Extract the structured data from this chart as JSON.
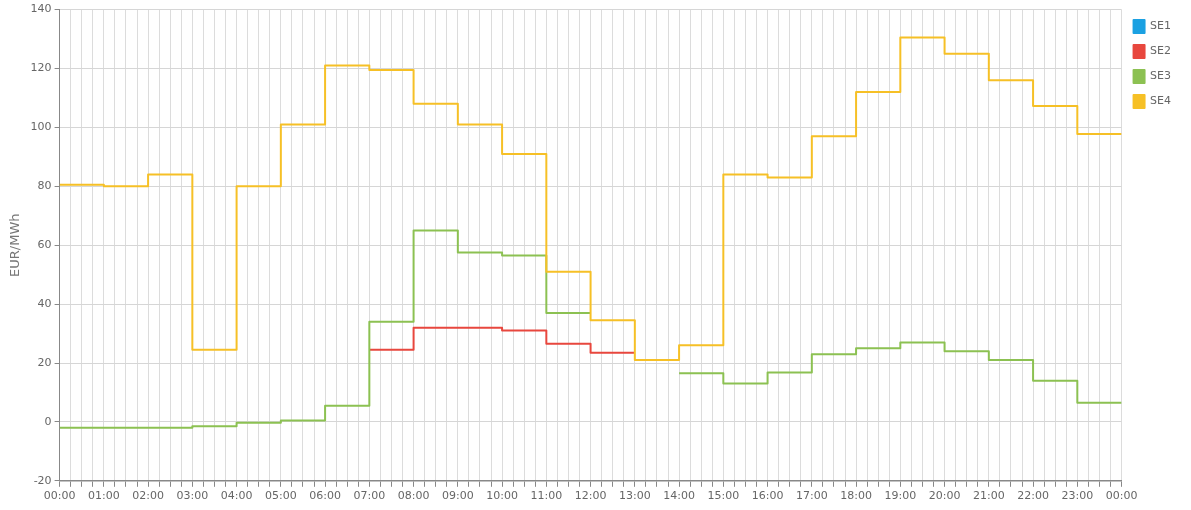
{
  "chart_data": {
    "type": "step",
    "ylabel": "EUR/MWh",
    "x": [
      0,
      1,
      2,
      3,
      4,
      5,
      6,
      7,
      8,
      9,
      10,
      11,
      12,
      13,
      14,
      15,
      16,
      17,
      18,
      19,
      20,
      21,
      22,
      23,
      24
    ],
    "xlim": [
      0,
      24
    ],
    "xticks": [
      {
        "value": 0,
        "label": "00:00"
      },
      {
        "value": 0.25,
        "label": null
      },
      {
        "value": 0.5,
        "label": null
      },
      {
        "value": 0.75,
        "label": null
      },
      {
        "value": 1,
        "label": "01:00"
      },
      {
        "value": 1.25,
        "label": null
      },
      {
        "value": 1.5,
        "label": null
      },
      {
        "value": 1.75,
        "label": null
      },
      {
        "value": 2,
        "label": "02:00"
      },
      {
        "value": 2.25,
        "label": null
      },
      {
        "value": 2.5,
        "label": null
      },
      {
        "value": 2.75,
        "label": null
      },
      {
        "value": 3,
        "label": "03:00"
      },
      {
        "value": 3.25,
        "label": null
      },
      {
        "value": 3.5,
        "label": null
      },
      {
        "value": 3.75,
        "label": null
      },
      {
        "value": 4,
        "label": "04:00"
      },
      {
        "value": 4.25,
        "label": null
      },
      {
        "value": 4.5,
        "label": null
      },
      {
        "value": 4.75,
        "label": null
      },
      {
        "value": 5,
        "label": "05:00"
      },
      {
        "value": 5.25,
        "label": null
      },
      {
        "value": 5.5,
        "label": null
      },
      {
        "value": 5.75,
        "label": null
      },
      {
        "value": 6,
        "label": "06:00"
      },
      {
        "value": 6.25,
        "label": null
      },
      {
        "value": 6.5,
        "label": null
      },
      {
        "value": 6.75,
        "label": null
      },
      {
        "value": 7,
        "label": "07:00"
      },
      {
        "value": 7.25,
        "label": null
      },
      {
        "value": 7.5,
        "label": null
      },
      {
        "value": 7.75,
        "label": null
      },
      {
        "value": 8,
        "label": "08:00"
      },
      {
        "value": 8.25,
        "label": null
      },
      {
        "value": 8.5,
        "label": null
      },
      {
        "value": 8.75,
        "label": null
      },
      {
        "value": 9,
        "label": "09:00"
      },
      {
        "value": 9.25,
        "label": null
      },
      {
        "value": 9.5,
        "label": null
      },
      {
        "value": 9.75,
        "label": null
      },
      {
        "value": 10,
        "label": "10:00"
      },
      {
        "value": 10.25,
        "label": null
      },
      {
        "value": 10.5,
        "label": null
      },
      {
        "value": 10.75,
        "label": null
      },
      {
        "value": 11,
        "label": "11:00"
      },
      {
        "value": 11.25,
        "label": null
      },
      {
        "value": 11.5,
        "label": null
      },
      {
        "value": 11.75,
        "label": null
      },
      {
        "value": 12,
        "label": "12:00"
      },
      {
        "value": 12.25,
        "label": null
      },
      {
        "value": 12.5,
        "label": null
      },
      {
        "value": 12.75,
        "label": null
      },
      {
        "value": 13,
        "label": "13:00"
      },
      {
        "value": 13.25,
        "label": null
      },
      {
        "value": 13.5,
        "label": null
      },
      {
        "value": 13.75,
        "label": null
      },
      {
        "value": 14,
        "label": "14:00"
      },
      {
        "value": 14.25,
        "label": null
      },
      {
        "value": 14.5,
        "label": null
      },
      {
        "value": 14.75,
        "label": null
      },
      {
        "value": 15,
        "label": "15:00"
      },
      {
        "value": 15.25,
        "label": null
      },
      {
        "value": 15.5,
        "label": null
      },
      {
        "value": 15.75,
        "label": null
      },
      {
        "value": 16,
        "label": "16:00"
      },
      {
        "value": 16.25,
        "label": null
      },
      {
        "value": 16.5,
        "label": null
      },
      {
        "value": 16.75,
        "label": null
      },
      {
        "value": 17,
        "label": "17:00"
      },
      {
        "value": 17.25,
        "label": null
      },
      {
        "value": 17.5,
        "label": null
      },
      {
        "value": 17.75,
        "label": null
      },
      {
        "value": 18,
        "label": "18:00"
      },
      {
        "value": 18.25,
        "label": null
      },
      {
        "value": 18.5,
        "label": null
      },
      {
        "value": 18.75,
        "label": null
      },
      {
        "value": 19,
        "label": "19:00"
      },
      {
        "value": 19.25,
        "label": null
      },
      {
        "value": 19.5,
        "label": null
      },
      {
        "value": 19.75,
        "label": null
      },
      {
        "value": 20,
        "label": "20:00"
      },
      {
        "value": 20.25,
        "label": null
      },
      {
        "value": 20.5,
        "label": null
      },
      {
        "value": 20.75,
        "label": null
      },
      {
        "value": 21,
        "label": "21:00"
      },
      {
        "value": 21.25,
        "label": null
      },
      {
        "value": 21.5,
        "label": null
      },
      {
        "value": 21.75,
        "label": null
      },
      {
        "value": 22,
        "label": "22:00"
      },
      {
        "value": 22.25,
        "label": null
      },
      {
        "value": 22.5,
        "label": null
      },
      {
        "value": 22.75,
        "label": null
      },
      {
        "value": 23,
        "label": "23:00"
      },
      {
        "value": 23.25,
        "label": null
      },
      {
        "value": 23.5,
        "label": null
      },
      {
        "value": 23.75,
        "label": null
      },
      {
        "value": 24,
        "label": "00:00"
      }
    ],
    "ylim": [
      -20,
      140
    ],
    "yticks": [
      -20,
      0,
      20,
      40,
      60,
      80,
      100,
      120,
      140
    ],
    "grid": true,
    "legend": "top right",
    "marker": "none",
    "line_style": "solid",
    "series": [
      {
        "name": "SE1",
        "color": "#1ba1e2",
        "values": [
          null,
          null,
          null,
          null,
          null,
          null,
          null,
          null,
          null,
          null,
          null,
          null,
          null,
          null,
          null,
          null,
          null,
          null,
          null,
          null,
          null,
          null,
          null,
          null,
          null
        ]
      },
      {
        "name": "SE2",
        "color": "#e8473e",
        "values": [
          null,
          null,
          null,
          null,
          null,
          null,
          null,
          24.5,
          32,
          32,
          31,
          26.5,
          23.5,
          23.5,
          null,
          null,
          null,
          null,
          null,
          null,
          null,
          null,
          null,
          null,
          null
        ]
      },
      {
        "name": "SE3",
        "color": "#8cc152",
        "values": [
          -2,
          -2,
          -2,
          -1.5,
          -0.3,
          0.5,
          5.5,
          34,
          65,
          57.5,
          56.5,
          37,
          37,
          null,
          16.5,
          13,
          16.8,
          23,
          25,
          27,
          24,
          21,
          14,
          6.5,
          6.5
        ]
      },
      {
        "name": "SE4",
        "color": "#f6c026",
        "values": [
          80.5,
          80,
          84,
          24.5,
          80,
          101,
          121,
          119.5,
          108,
          101,
          91,
          51,
          34.5,
          21,
          26,
          84,
          83,
          97,
          112,
          130.5,
          125,
          116,
          107.3,
          97.8,
          97.8
        ]
      }
    ]
  }
}
